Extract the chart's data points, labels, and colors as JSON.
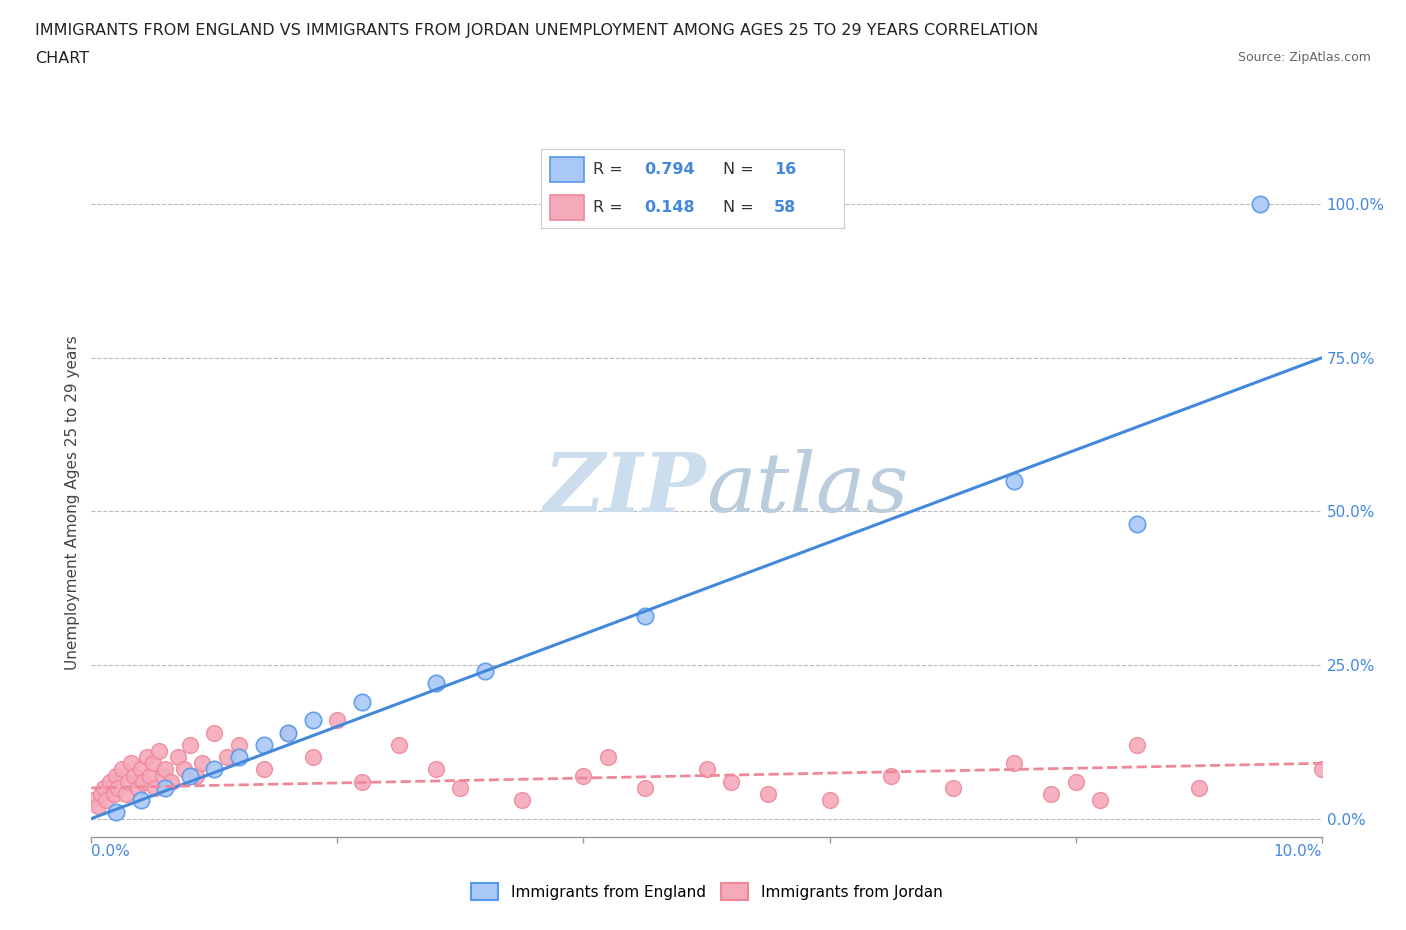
{
  "title_line1": "IMMIGRANTS FROM ENGLAND VS IMMIGRANTS FROM JORDAN UNEMPLOYMENT AMONG AGES 25 TO 29 YEARS CORRELATION",
  "title_line2": "CHART",
  "source": "Source: ZipAtlas.com",
  "ylabel": "Unemployment Among Ages 25 to 29 years",
  "y_ticks_labels": [
    "0.0%",
    "25.0%",
    "50.0%",
    "75.0%",
    "100.0%"
  ],
  "y_tick_vals": [
    0.0,
    25.0,
    50.0,
    75.0,
    100.0
  ],
  "x_tick_vals": [
    0.0,
    2.0,
    4.0,
    6.0,
    8.0,
    10.0
  ],
  "legend_england_R": "0.794",
  "legend_england_N": "16",
  "legend_jordan_R": "0.148",
  "legend_jordan_N": "58",
  "legend_label_england": "Immigrants from England",
  "legend_label_jordan": "Immigrants from Jordan",
  "england_face_color": "#aac8f5",
  "jordan_face_color": "#f5aabb",
  "england_edge_color": "#5599ee",
  "jordan_edge_color": "#ee8899",
  "england_line_color": "#4488dd",
  "jordan_line_color": "#ee8899",
  "tick_label_color": "#4488dd",
  "watermark_color": "#ccddeebb",
  "england_scatter_x": [
    0.2,
    0.4,
    0.6,
    0.8,
    1.0,
    1.2,
    1.4,
    1.6,
    1.8,
    2.2,
    2.8,
    3.2,
    4.5,
    7.5,
    8.5,
    9.5
  ],
  "england_scatter_y": [
    1.0,
    3.0,
    5.0,
    7.0,
    8.0,
    10.0,
    12.0,
    14.0,
    16.0,
    19.0,
    22.0,
    24.0,
    33.0,
    55.0,
    48.0,
    100.0
  ],
  "jordan_scatter_x": [
    0.0,
    0.05,
    0.08,
    0.1,
    0.12,
    0.15,
    0.18,
    0.2,
    0.22,
    0.25,
    0.28,
    0.3,
    0.32,
    0.35,
    0.38,
    0.4,
    0.42,
    0.45,
    0.48,
    0.5,
    0.52,
    0.55,
    0.58,
    0.6,
    0.65,
    0.7,
    0.75,
    0.8,
    0.85,
    0.9,
    1.0,
    1.1,
    1.2,
    1.4,
    1.6,
    1.8,
    2.0,
    2.2,
    2.5,
    2.8,
    3.0,
    3.5,
    4.0,
    4.2,
    4.5,
    5.0,
    5.2,
    5.5,
    6.0,
    6.5,
    7.0,
    7.5,
    7.8,
    8.0,
    8.2,
    8.5,
    9.0,
    10.0
  ],
  "jordan_scatter_y": [
    3.0,
    2.0,
    4.0,
    5.0,
    3.0,
    6.0,
    4.0,
    7.0,
    5.0,
    8.0,
    4.0,
    6.0,
    9.0,
    7.0,
    5.0,
    8.0,
    6.0,
    10.0,
    7.0,
    9.0,
    5.0,
    11.0,
    7.0,
    8.0,
    6.0,
    10.0,
    8.0,
    12.0,
    7.0,
    9.0,
    14.0,
    10.0,
    12.0,
    8.0,
    14.0,
    10.0,
    16.0,
    6.0,
    12.0,
    8.0,
    5.0,
    3.0,
    7.0,
    10.0,
    5.0,
    8.0,
    6.0,
    4.0,
    3.0,
    7.0,
    5.0,
    9.0,
    4.0,
    6.0,
    3.0,
    12.0,
    5.0,
    8.0
  ],
  "eng_line_x0": 0.0,
  "eng_line_y0": 0.0,
  "eng_line_x1": 10.0,
  "eng_line_y1": 75.0,
  "jor_line_x0": 0.0,
  "jor_line_y0": 5.0,
  "jor_line_x1": 10.0,
  "jor_line_y1": 9.0
}
